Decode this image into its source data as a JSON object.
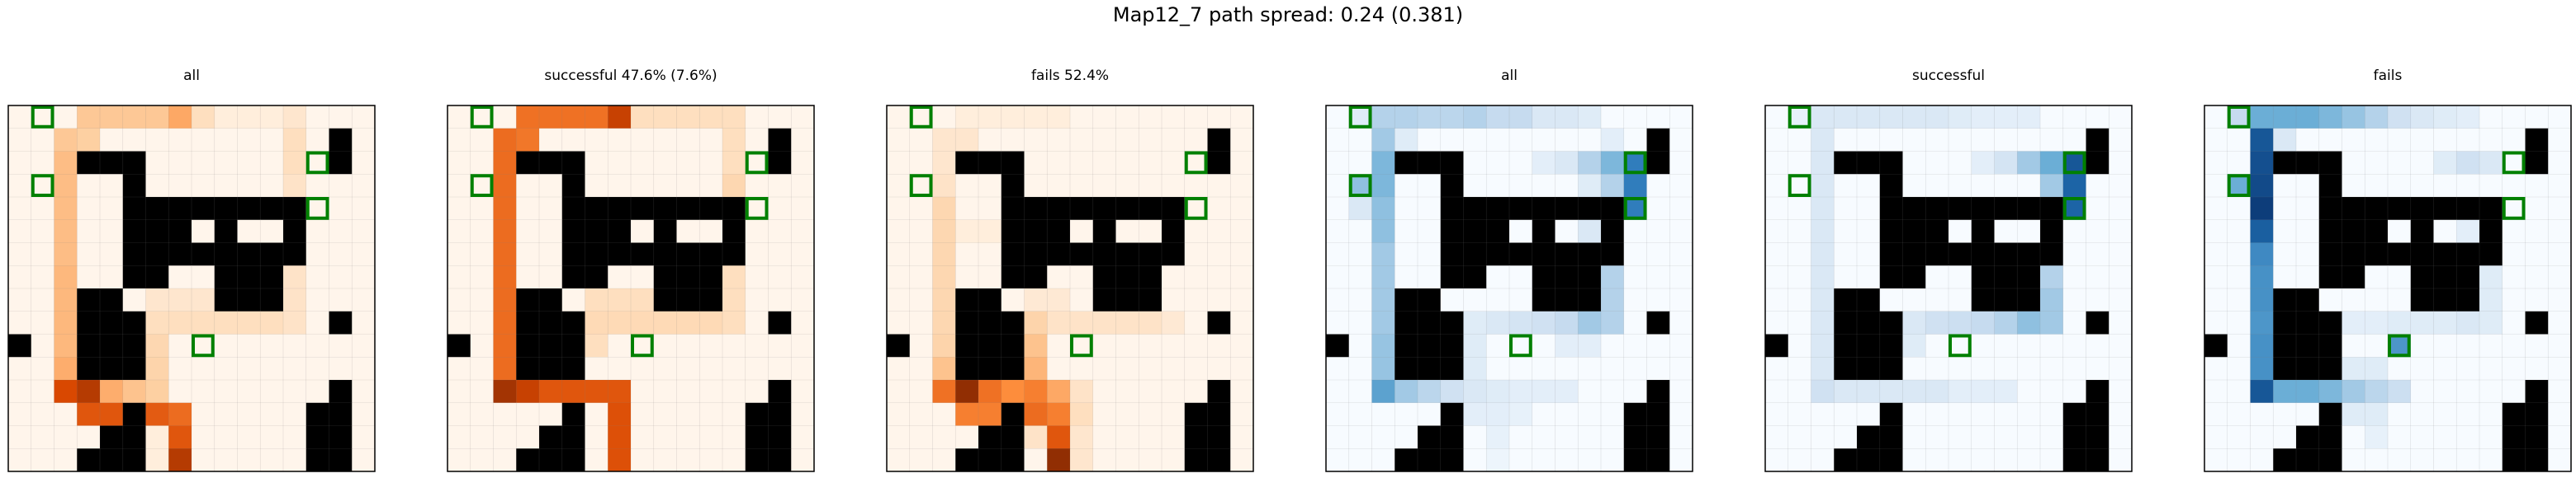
{
  "title": "Map12_7 path spread: 0.24 (0.381)",
  "chart_data": [
    {
      "type": "heatmap",
      "title": "all",
      "colormap": "Oranges"
    },
    {
      "type": "heatmap",
      "title": "successful 47.6% (7.6%)",
      "colormap": "Oranges"
    },
    {
      "type": "heatmap",
      "title": "fails 52.4%",
      "colormap": "Oranges"
    },
    {
      "type": "heatmap",
      "title": "all",
      "colormap": "Blues"
    },
    {
      "type": "heatmap",
      "title": "successful",
      "colormap": "Blues"
    },
    {
      "type": "heatmap",
      "title": "fails",
      "colormap": "Blues"
    }
  ],
  "grid_size": 16,
  "walls": [
    [
      1,
      14
    ],
    [
      2,
      14
    ],
    [
      2,
      5
    ],
    [
      2,
      4
    ],
    [
      2,
      3
    ],
    [
      3,
      5
    ],
    [
      4,
      5
    ],
    [
      4,
      6
    ],
    [
      4,
      7
    ],
    [
      4,
      8
    ],
    [
      4,
      9
    ],
    [
      4,
      10
    ],
    [
      4,
      11
    ],
    [
      4,
      12
    ],
    [
      5,
      5
    ],
    [
      5,
      6
    ],
    [
      5,
      7
    ],
    [
      5,
      9
    ],
    [
      5,
      12
    ],
    [
      6,
      5
    ],
    [
      6,
      6
    ],
    [
      6,
      7
    ],
    [
      6,
      8
    ],
    [
      6,
      9
    ],
    [
      6,
      10
    ],
    [
      6,
      11
    ],
    [
      6,
      12
    ],
    [
      7,
      5
    ],
    [
      7,
      6
    ],
    [
      7,
      9
    ],
    [
      7,
      10
    ],
    [
      7,
      11
    ],
    [
      8,
      9
    ],
    [
      8,
      10
    ],
    [
      8,
      11
    ],
    [
      8,
      3
    ],
    [
      8,
      4
    ],
    [
      9,
      3
    ],
    [
      9,
      4
    ],
    [
      9,
      5
    ],
    [
      10,
      3
    ],
    [
      10,
      4
    ],
    [
      10,
      5
    ],
    [
      11,
      3
    ],
    [
      11,
      4
    ],
    [
      11,
      5
    ],
    [
      9,
      14
    ],
    [
      10,
      0
    ],
    [
      12,
      14
    ],
    [
      13,
      14
    ],
    [
      13,
      13
    ],
    [
      14,
      13
    ],
    [
      14,
      14
    ],
    [
      15,
      13
    ],
    [
      15,
      14
    ],
    [
      14,
      4
    ],
    [
      13,
      5
    ],
    [
      14,
      5
    ],
    [
      15,
      4
    ],
    [
      15,
      3
    ],
    [
      15,
      5
    ]
  ],
  "goals": [
    [
      0,
      1
    ],
    [
      2,
      13
    ],
    [
      3,
      1
    ],
    [
      4,
      13
    ],
    [
      10,
      8
    ]
  ],
  "goal_color": "#008000",
  "wall_color": "#000000",
  "oranges_ramp": [
    "#fff5eb",
    "#fdd0a2",
    "#fd8d3c",
    "#d94801",
    "#7f2704"
  ],
  "blues_ramp": [
    "#f7fbff",
    "#c6dbef",
    "#6baed6",
    "#2171b5",
    "#08306b"
  ],
  "heat": [
    [
      [
        0,
        3,
        0.28
      ],
      [
        0,
        4,
        0.28
      ],
      [
        0,
        5,
        0.28
      ],
      [
        0,
        6,
        0.28
      ],
      [
        0,
        7,
        0.4
      ],
      [
        0,
        8,
        0.15
      ],
      [
        0,
        9,
        0.05
      ],
      [
        0,
        10,
        0.05
      ],
      [
        0,
        11,
        0.05
      ],
      [
        0,
        12,
        0.1
      ],
      [
        1,
        2,
        0.28
      ],
      [
        1,
        3,
        0.25
      ],
      [
        1,
        12,
        0.15
      ],
      [
        2,
        2,
        0.32
      ],
      [
        2,
        12,
        0.15
      ],
      [
        3,
        2,
        0.32
      ],
      [
        3,
        12,
        0.12
      ],
      [
        4,
        2,
        0.32
      ],
      [
        4,
        12,
        0.12
      ],
      [
        5,
        2,
        0.32
      ],
      [
        5,
        12,
        0.12
      ],
      [
        6,
        2,
        0.32
      ],
      [
        6,
        12,
        0.12
      ],
      [
        7,
        2,
        0.34
      ],
      [
        7,
        12,
        0.12
      ],
      [
        8,
        2,
        0.34
      ],
      [
        8,
        6,
        0.1
      ],
      [
        8,
        7,
        0.1
      ],
      [
        8,
        8,
        0.1
      ],
      [
        8,
        12,
        0.12
      ],
      [
        9,
        2,
        0.34
      ],
      [
        9,
        6,
        0.15
      ],
      [
        9,
        7,
        0.15
      ],
      [
        9,
        8,
        0.15
      ],
      [
        9,
        9,
        0.15
      ],
      [
        9,
        10,
        0.15
      ],
      [
        9,
        11,
        0.15
      ],
      [
        9,
        12,
        0.12
      ],
      [
        10,
        2,
        0.34
      ],
      [
        10,
        6,
        0.2
      ],
      [
        11,
        2,
        0.38
      ],
      [
        11,
        6,
        0.22
      ],
      [
        12,
        2,
        0.75
      ],
      [
        12,
        3,
        0.85
      ],
      [
        12,
        4,
        0.38
      ],
      [
        12,
        5,
        0.3
      ],
      [
        12,
        6,
        0.25
      ],
      [
        13,
        3,
        0.7
      ],
      [
        13,
        4,
        0.7
      ],
      [
        13,
        5,
        0.68
      ],
      [
        13,
        6,
        0.68
      ],
      [
        13,
        7,
        0.62
      ],
      [
        14,
        7,
        0.7
      ],
      [
        15,
        7,
        0.85
      ],
      [
        15,
        6,
        0.05
      ],
      [
        14,
        6,
        0.05
      ]
    ],
    [
      [
        0,
        3,
        0.6
      ],
      [
        0,
        4,
        0.6
      ],
      [
        0,
        5,
        0.6
      ],
      [
        0,
        6,
        0.6
      ],
      [
        0,
        7,
        0.8
      ],
      [
        0,
        8,
        0.15
      ],
      [
        0,
        9,
        0.15
      ],
      [
        0,
        10,
        0.15
      ],
      [
        0,
        11,
        0.15
      ],
      [
        0,
        12,
        0.15
      ],
      [
        1,
        2,
        0.62
      ],
      [
        1,
        3,
        0.58
      ],
      [
        1,
        12,
        0.15
      ],
      [
        2,
        2,
        0.62
      ],
      [
        2,
        12,
        0.15
      ],
      [
        3,
        2,
        0.62
      ],
      [
        3,
        12,
        0.2
      ],
      [
        4,
        2,
        0.62
      ],
      [
        4,
        12,
        0.2
      ],
      [
        5,
        2,
        0.62
      ],
      [
        5,
        12,
        0.15
      ],
      [
        6,
        2,
        0.62
      ],
      [
        6,
        12,
        0.15
      ],
      [
        7,
        2,
        0.62
      ],
      [
        7,
        12,
        0.15
      ],
      [
        8,
        2,
        0.62
      ],
      [
        8,
        6,
        0.15
      ],
      [
        8,
        7,
        0.15
      ],
      [
        8,
        8,
        0.15
      ],
      [
        8,
        12,
        0.15
      ],
      [
        9,
        2,
        0.62
      ],
      [
        9,
        6,
        0.18
      ],
      [
        9,
        7,
        0.18
      ],
      [
        9,
        8,
        0.18
      ],
      [
        9,
        9,
        0.18
      ],
      [
        9,
        10,
        0.18
      ],
      [
        9,
        11,
        0.18
      ],
      [
        9,
        12,
        0.15
      ],
      [
        10,
        2,
        0.62
      ],
      [
        10,
        6,
        0.15
      ],
      [
        11,
        2,
        0.62
      ],
      [
        12,
        2,
        0.9
      ],
      [
        12,
        3,
        0.8
      ],
      [
        12,
        4,
        0.7
      ],
      [
        12,
        5,
        0.7
      ],
      [
        12,
        6,
        0.7
      ],
      [
        12,
        7,
        0.7
      ],
      [
        13,
        7,
        0.72
      ],
      [
        14,
        7,
        0.72
      ],
      [
        15,
        7,
        0.72
      ]
    ],
    [
      [
        0,
        3,
        0.05
      ],
      [
        0,
        4,
        0.05
      ],
      [
        0,
        5,
        0.05
      ],
      [
        0,
        6,
        0.05
      ],
      [
        0,
        7,
        0.05
      ],
      [
        1,
        2,
        0.1
      ],
      [
        1,
        3,
        0.1
      ],
      [
        2,
        2,
        0.1
      ],
      [
        3,
        2,
        0.12
      ],
      [
        4,
        2,
        0.2
      ],
      [
        5,
        2,
        0.2
      ],
      [
        6,
        2,
        0.2
      ],
      [
        7,
        2,
        0.2
      ],
      [
        8,
        2,
        0.2
      ],
      [
        9,
        2,
        0.2
      ],
      [
        10,
        2,
        0.22
      ],
      [
        11,
        2,
        0.3
      ],
      [
        5,
        3,
        0.05
      ],
      [
        5,
        4,
        0.05
      ],
      [
        8,
        6,
        0.08
      ],
      [
        8,
        7,
        0.08
      ],
      [
        9,
        6,
        0.22
      ],
      [
        9,
        7,
        0.12
      ],
      [
        9,
        8,
        0.12
      ],
      [
        9,
        9,
        0.12
      ],
      [
        9,
        10,
        0.12
      ],
      [
        9,
        11,
        0.12
      ],
      [
        9,
        12,
        0.08
      ],
      [
        10,
        6,
        0.3
      ],
      [
        11,
        6,
        0.35
      ],
      [
        12,
        2,
        0.6
      ],
      [
        12,
        3,
        0.95
      ],
      [
        12,
        4,
        0.6
      ],
      [
        12,
        5,
        0.5
      ],
      [
        12,
        6,
        0.55
      ],
      [
        12,
        7,
        0.4
      ],
      [
        12,
        8,
        0.12
      ],
      [
        13,
        3,
        0.55
      ],
      [
        13,
        4,
        0.55
      ],
      [
        13,
        5,
        0.55
      ],
      [
        13,
        6,
        0.62
      ],
      [
        13,
        7,
        0.55
      ],
      [
        13,
        8,
        0.15
      ],
      [
        14,
        6,
        0.12
      ],
      [
        14,
        7,
        0.7
      ],
      [
        14,
        8,
        0.1
      ],
      [
        15,
        7,
        0.95
      ],
      [
        15,
        8,
        0.1
      ]
    ],
    [
      [
        0,
        1,
        0.12
      ],
      [
        0,
        2,
        0.3
      ],
      [
        0,
        3,
        0.3
      ],
      [
        0,
        4,
        0.28
      ],
      [
        0,
        5,
        0.28
      ],
      [
        0,
        6,
        0.3
      ],
      [
        0,
        7,
        0.25
      ],
      [
        0,
        8,
        0.25
      ],
      [
        0,
        9,
        0.15
      ],
      [
        0,
        10,
        0.15
      ],
      [
        0,
        11,
        0.12
      ],
      [
        1,
        2,
        0.35
      ],
      [
        1,
        3,
        0.12
      ],
      [
        1,
        12,
        0.1
      ],
      [
        2,
        2,
        0.45
      ],
      [
        2,
        9,
        0.1
      ],
      [
        2,
        10,
        0.15
      ],
      [
        2,
        11,
        0.3
      ],
      [
        2,
        12,
        0.45
      ],
      [
        2,
        13,
        0.7
      ],
      [
        3,
        1,
        0.4
      ],
      [
        3,
        2,
        0.45
      ],
      [
        3,
        11,
        0.12
      ],
      [
        3,
        12,
        0.3
      ],
      [
        3,
        13,
        0.7
      ],
      [
        4,
        1,
        0.15
      ],
      [
        4,
        2,
        0.4
      ],
      [
        4,
        13,
        0.7
      ],
      [
        5,
        2,
        0.4
      ],
      [
        5,
        11,
        0.15
      ],
      [
        5,
        12,
        0.25
      ],
      [
        6,
        2,
        0.35
      ],
      [
        6,
        12,
        0.25
      ],
      [
        7,
        2,
        0.35
      ],
      [
        7,
        12,
        0.3
      ],
      [
        8,
        2,
        0.35
      ],
      [
        8,
        12,
        0.3
      ],
      [
        9,
        2,
        0.35
      ],
      [
        9,
        6,
        0.12
      ],
      [
        9,
        7,
        0.15
      ],
      [
        9,
        8,
        0.18
      ],
      [
        9,
        9,
        0.2
      ],
      [
        9,
        10,
        0.25
      ],
      [
        9,
        11,
        0.35
      ],
      [
        9,
        12,
        0.3
      ],
      [
        10,
        2,
        0.38
      ],
      [
        10,
        6,
        0.12
      ],
      [
        10,
        10,
        0.1
      ],
      [
        10,
        11,
        0.1
      ],
      [
        11,
        2,
        0.38
      ],
      [
        11,
        6,
        0.12
      ],
      [
        12,
        2,
        0.55
      ],
      [
        12,
        3,
        0.35
      ],
      [
        12,
        4,
        0.28
      ],
      [
        12,
        5,
        0.2
      ],
      [
        12,
        6,
        0.15
      ],
      [
        12,
        7,
        0.12
      ],
      [
        12,
        8,
        0.1
      ],
      [
        12,
        9,
        0.1
      ],
      [
        12,
        10,
        0.1
      ],
      [
        13,
        6,
        0.1
      ],
      [
        13,
        7,
        0.1
      ],
      [
        13,
        8,
        0.08
      ],
      [
        14,
        7,
        0.08
      ],
      [
        15,
        7,
        0.05
      ]
    ],
    [
      [
        0,
        1,
        0.08
      ],
      [
        0,
        2,
        0.15
      ],
      [
        0,
        3,
        0.15
      ],
      [
        0,
        4,
        0.15
      ],
      [
        0,
        5,
        0.15
      ],
      [
        0,
        6,
        0.15
      ],
      [
        0,
        7,
        0.15
      ],
      [
        0,
        8,
        0.12
      ],
      [
        0,
        9,
        0.1
      ],
      [
        0,
        10,
        0.1
      ],
      [
        0,
        11,
        0.1
      ],
      [
        1,
        2,
        0.15
      ],
      [
        2,
        2,
        0.15
      ],
      [
        2,
        9,
        0.1
      ],
      [
        2,
        10,
        0.18
      ],
      [
        2,
        11,
        0.35
      ],
      [
        2,
        12,
        0.5
      ],
      [
        2,
        13,
        0.85
      ],
      [
        3,
        2,
        0.15
      ],
      [
        3,
        12,
        0.35
      ],
      [
        3,
        13,
        0.8
      ],
      [
        4,
        2,
        0.15
      ],
      [
        4,
        13,
        0.8
      ],
      [
        5,
        2,
        0.15
      ],
      [
        5,
        12,
        0.25
      ],
      [
        6,
        2,
        0.15
      ],
      [
        6,
        12,
        0.3
      ],
      [
        7,
        2,
        0.15
      ],
      [
        7,
        12,
        0.3
      ],
      [
        8,
        2,
        0.15
      ],
      [
        8,
        12,
        0.35
      ],
      [
        9,
        2,
        0.15
      ],
      [
        9,
        6,
        0.15
      ],
      [
        9,
        7,
        0.2
      ],
      [
        9,
        8,
        0.22
      ],
      [
        9,
        9,
        0.25
      ],
      [
        9,
        10,
        0.3
      ],
      [
        9,
        11,
        0.4
      ],
      [
        9,
        12,
        0.35
      ],
      [
        10,
        2,
        0.15
      ],
      [
        10,
        6,
        0.12
      ],
      [
        11,
        2,
        0.15
      ],
      [
        12,
        2,
        0.2
      ],
      [
        12,
        3,
        0.15
      ],
      [
        12,
        4,
        0.15
      ],
      [
        12,
        5,
        0.15
      ],
      [
        12,
        6,
        0.15
      ],
      [
        12,
        7,
        0.15
      ],
      [
        12,
        8,
        0.1
      ],
      [
        12,
        9,
        0.1
      ],
      [
        12,
        10,
        0.1
      ]
    ],
    [
      [
        0,
        1,
        0.25
      ],
      [
        0,
        2,
        0.5
      ],
      [
        0,
        3,
        0.5
      ],
      [
        0,
        4,
        0.5
      ],
      [
        0,
        5,
        0.45
      ],
      [
        0,
        6,
        0.38
      ],
      [
        0,
        7,
        0.3
      ],
      [
        0,
        8,
        0.2
      ],
      [
        0,
        9,
        0.15
      ],
      [
        0,
        10,
        0.12
      ],
      [
        0,
        11,
        0.1
      ],
      [
        1,
        2,
        0.85
      ],
      [
        1,
        3,
        0.15
      ],
      [
        2,
        2,
        0.88
      ],
      [
        2,
        10,
        0.12
      ],
      [
        2,
        11,
        0.2
      ],
      [
        2,
        12,
        0.15
      ],
      [
        3,
        1,
        0.5
      ],
      [
        3,
        2,
        0.9
      ],
      [
        4,
        2,
        0.95
      ],
      [
        4,
        12,
        0.12
      ],
      [
        5,
        2,
        0.82
      ],
      [
        5,
        11,
        0.1
      ],
      [
        5,
        12,
        0.12
      ],
      [
        6,
        2,
        0.65
      ],
      [
        6,
        12,
        0.12
      ],
      [
        7,
        2,
        0.62
      ],
      [
        7,
        12,
        0.12
      ],
      [
        8,
        2,
        0.62
      ],
      [
        8,
        12,
        0.12
      ],
      [
        9,
        2,
        0.6
      ],
      [
        9,
        6,
        0.1
      ],
      [
        9,
        7,
        0.1
      ],
      [
        9,
        8,
        0.12
      ],
      [
        9,
        9,
        0.12
      ],
      [
        9,
        10,
        0.12
      ],
      [
        9,
        11,
        0.15
      ],
      [
        9,
        12,
        0.12
      ],
      [
        10,
        2,
        0.62
      ],
      [
        10,
        8,
        0.6
      ],
      [
        11,
        2,
        0.62
      ],
      [
        11,
        6,
        0.12
      ],
      [
        11,
        7,
        0.12
      ],
      [
        12,
        2,
        0.85
      ],
      [
        12,
        3,
        0.5
      ],
      [
        12,
        4,
        0.5
      ],
      [
        12,
        5,
        0.45
      ],
      [
        12,
        6,
        0.35
      ],
      [
        12,
        7,
        0.28
      ],
      [
        12,
        8,
        0.22
      ],
      [
        13,
        6,
        0.12
      ],
      [
        13,
        7,
        0.12
      ],
      [
        14,
        7,
        0.08
      ]
    ]
  ]
}
